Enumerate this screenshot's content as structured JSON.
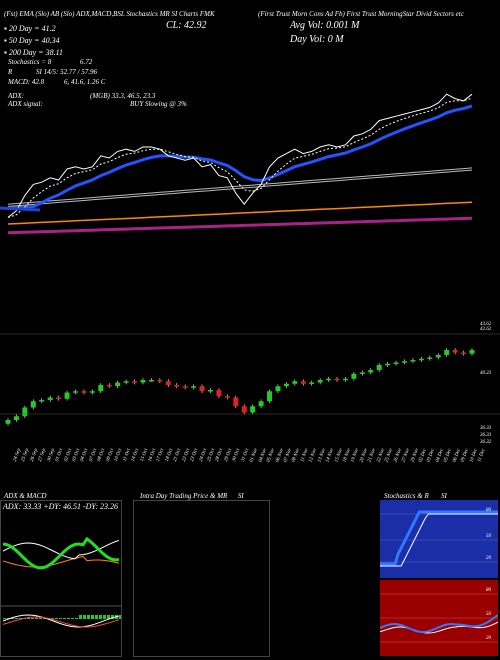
{
  "header": {
    "line1_left": "(Fst) EMA (Slo) AB (Slo) ADX,MACD,BSL Stochastics MR SI Charts FMK",
    "title_right": "(First Trust Morn Cons Ad Fb) First Trust MorningStar Divid Sectors etc",
    "ema20": "20 Day = 41.2",
    "ema50": "50 Day = 40.34",
    "ema200": "200 Day = 38.11",
    "stoch": "Stochastics = 8",
    "stoch_val": "6.72",
    "rsi": "R",
    "rsi_detail": "SI 14/5: 52.77 / 57.96",
    "macd": "MACD: 42.8",
    "macd_detail": "6, 41.6, 1.26 C",
    "adx": "ADX:",
    "adx_detail": "(MGB) 33.3, 46.5, 23.3",
    "adx_signal_label": "ADX signal:",
    "adx_signal": "BUY Slowing @ 3%",
    "close": "CL: 42.92",
    "avg_vol": "Avg Vol: 0.001 M",
    "day_vol": "Day Vol: 0  M"
  },
  "chart_data": {
    "type": "candlestick",
    "x": [
      "24 Sep",
      "25 Sep",
      "26 Sep",
      "27 Sep",
      "30 Sep",
      "01 Oct",
      "02 Oct",
      "03 Oct",
      "04 Oct",
      "07 Oct",
      "08 Oct",
      "09 Oct",
      "10 Oct",
      "11 Oct",
      "14 Oct",
      "15 Oct",
      "16 Oct",
      "17 Oct",
      "18 Oct",
      "21 Oct",
      "22 Oct",
      "23 Oct",
      "24 Oct",
      "25 Oct",
      "28 Oct",
      "29 Oct",
      "30 Oct",
      "31 Oct",
      "01 Nov",
      "04 Nov",
      "05 Nov",
      "06 Nov",
      "07 Nov",
      "08 Nov",
      "11 Nov",
      "12 Nov",
      "13 Nov",
      "14 Nov",
      "15 Nov",
      "18 Nov",
      "19 Nov",
      "20 Nov",
      "21 Nov",
      "22 Nov",
      "25 Nov",
      "26 Nov",
      "27 Nov",
      "29 Nov",
      "02 Dec",
      "03 Dec",
      "04 Dec",
      "05 Dec",
      "06 Dec",
      "09 Dec",
      "10 Dec",
      "11 Dec"
    ],
    "close_series": [
      37.3,
      37.6,
      38.3,
      38.8,
      38.9,
      39.1,
      39.0,
      39.5,
      39.6,
      39.5,
      39.6,
      40.1,
      40.0,
      40.3,
      40.4,
      40.3,
      40.5,
      40.5,
      40.4,
      40.1,
      40.0,
      39.9,
      40.0,
      39.6,
      39.7,
      39.2,
      39.1,
      38.4,
      37.9,
      38.4,
      38.8,
      39.6,
      40.0,
      40.2,
      40.4,
      40.2,
      40.3,
      40.5,
      40.6,
      40.5,
      40.6,
      41.0,
      41.1,
      41.3,
      41.7,
      41.8,
      41.9,
      42.0,
      42.1,
      42.2,
      42.3,
      42.5,
      42.9,
      42.7,
      42.6,
      42.9
    ],
    "ylim": [
      36.0,
      44.0
    ],
    "price_ticks": [
      "43.93",
      "40.23",
      "36.33",
      "36.33",
      "36.32"
    ],
    "secondary_ticks": [
      "43.62",
      "42.62"
    ]
  },
  "panels": {
    "adx": {
      "title": "ADX & MACD",
      "values": "ADX: 33.33 +DY: 46.51 -DY: 23.26"
    },
    "intraday": {
      "title": "Intra Day Trading Price & MR",
      "suffix": "SI"
    },
    "stoch": {
      "title": "Stochastics & R",
      "suffix": "SI",
      "ticks": [
        "80",
        "50",
        "20"
      ]
    },
    "rsi": {
      "ticks": [
        "80",
        "50",
        "20"
      ]
    }
  },
  "colors": {
    "ema20": "#ffffff",
    "ema50": "#2255ff",
    "ema100": "#cccccc",
    "ema200": "#ff8800",
    "maroon": "#aa2288",
    "up": "#22cc22",
    "down": "#dd2222",
    "blue": "#1133aa",
    "red": "#aa0000"
  }
}
